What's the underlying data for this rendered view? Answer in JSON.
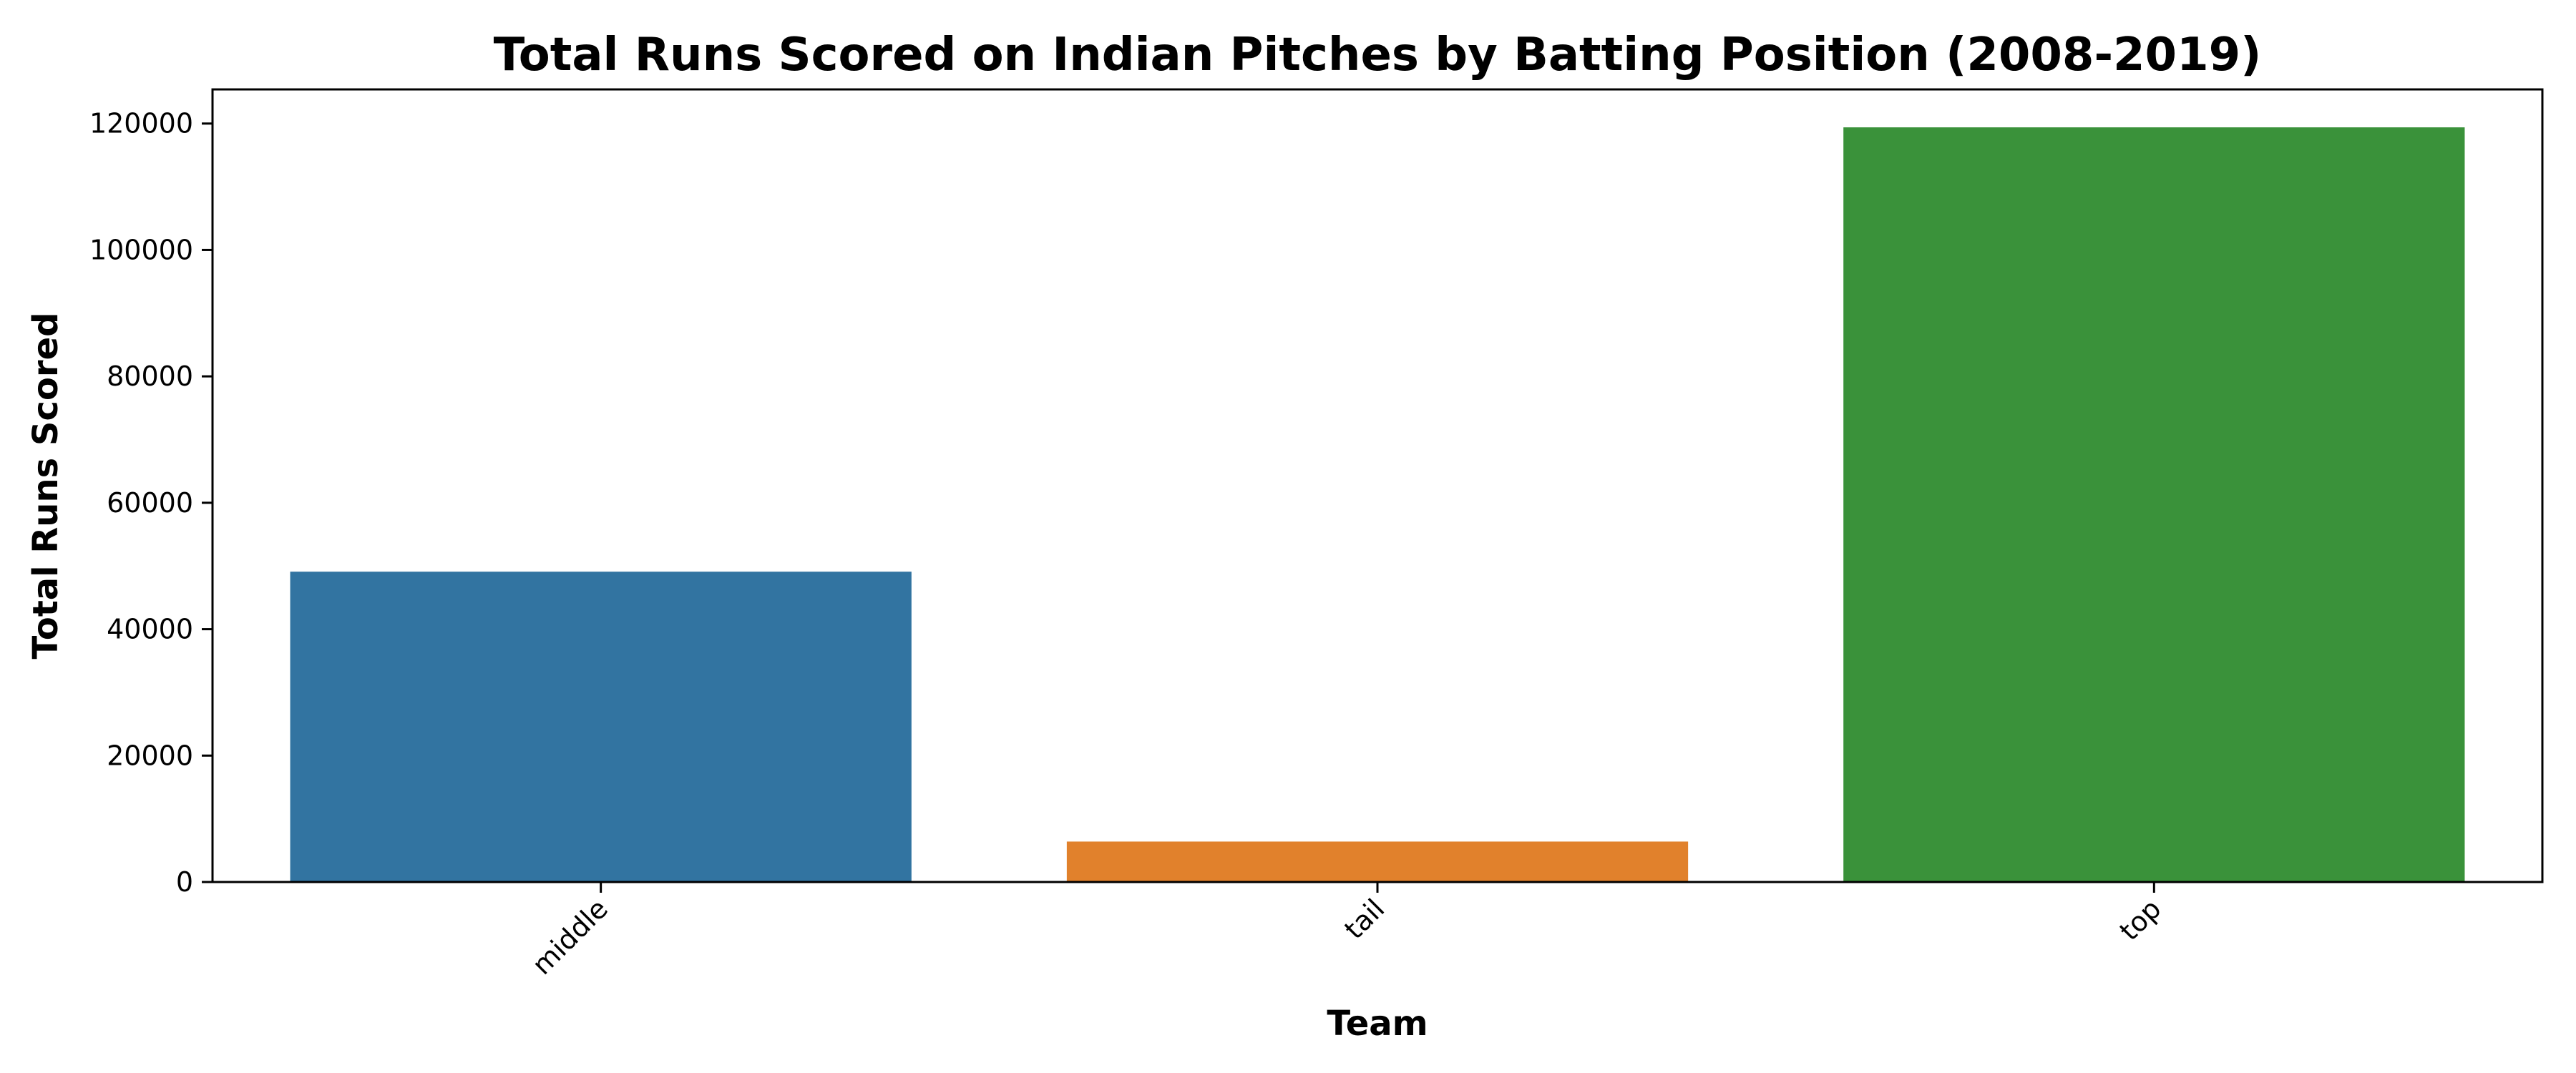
{
  "chart_data": {
    "type": "bar",
    "title": "Total Runs Scored on Indian Pitches by Batting Position (2008-2019)",
    "xlabel": "Team",
    "ylabel": "Total Runs Scored",
    "categories": [
      "middle",
      "tail",
      "top"
    ],
    "values": [
      49100,
      6400,
      119400
    ],
    "colors": [
      "#3274a1",
      "#e1812c",
      "#3a923a"
    ],
    "ylim": [
      0,
      125400
    ],
    "yticks": [
      0,
      20000,
      40000,
      60000,
      80000,
      100000,
      120000
    ],
    "xtick_rotation": "45 degrees",
    "grid": false,
    "legend": "none"
  }
}
